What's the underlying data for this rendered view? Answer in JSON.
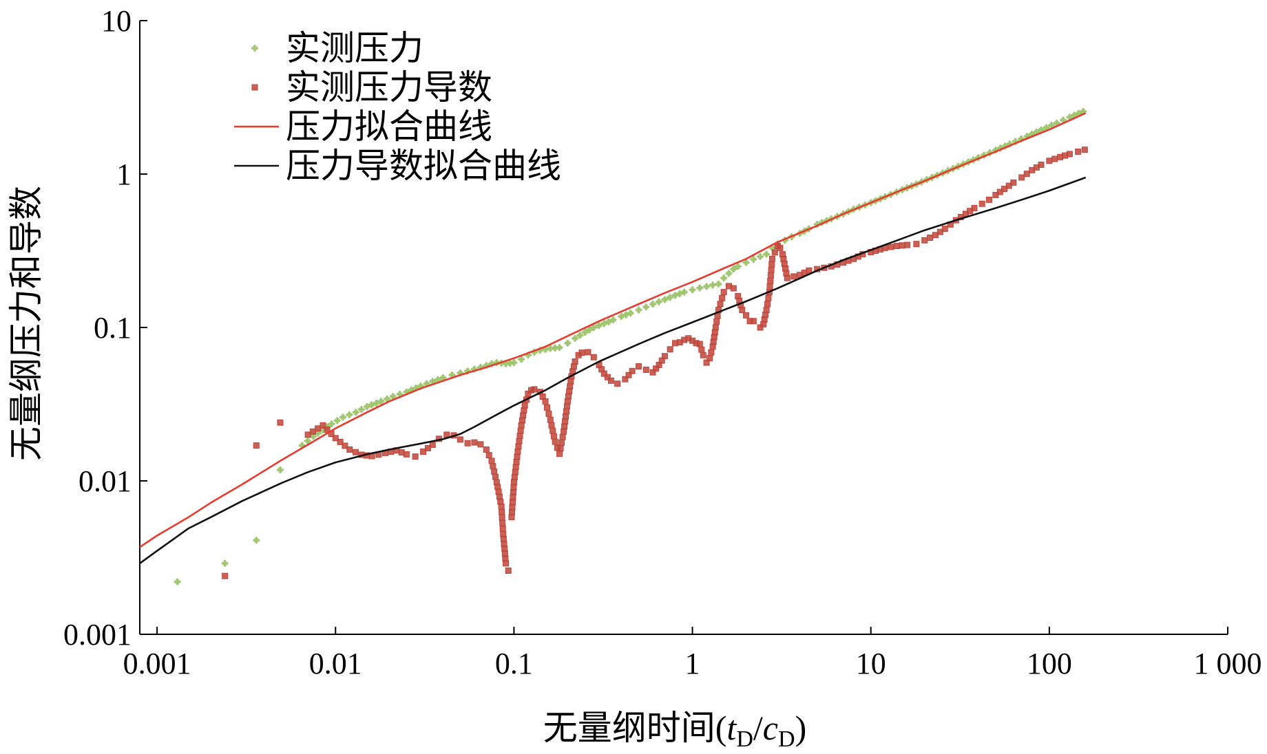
{
  "chart_data": {
    "type": "scatter",
    "title": "",
    "xlabel": {
      "main": "无量纲时间(",
      "var1": "t",
      "sub1": "D",
      "slash": "/",
      "var2": "c",
      "sub2": "D",
      "close": ")"
    },
    "ylabel": "无量纲压力和导数",
    "x_scale": "log",
    "y_scale": "log",
    "xlim": [
      0.0008,
      1000
    ],
    "ylim": [
      0.001,
      10
    ],
    "x_ticks": [
      {
        "value": 0.001,
        "label": "0.001"
      },
      {
        "value": 0.01,
        "label": "0.01"
      },
      {
        "value": 0.1,
        "label": "0.1"
      },
      {
        "value": 1,
        "label": "1"
      },
      {
        "value": 10,
        "label": "10"
      },
      {
        "value": 100,
        "label": "100"
      },
      {
        "value": 1000,
        "label": "1 000"
      }
    ],
    "y_ticks": [
      {
        "value": 0.001,
        "label": "0.001"
      },
      {
        "value": 0.01,
        "label": "0.01"
      },
      {
        "value": 0.1,
        "label": "0.1"
      },
      {
        "value": 1,
        "label": "1"
      },
      {
        "value": 10,
        "label": "10"
      }
    ],
    "grid": false,
    "legend": {
      "position": "top-left",
      "entries": [
        {
          "label": "实测压力",
          "marker": "cross",
          "color": "#9cc46a"
        },
        {
          "label": "实测压力导数",
          "marker": "square",
          "color": "#c0453a"
        },
        {
          "label": "压力拟合曲线",
          "marker": "line",
          "color": "#e83a2e"
        },
        {
          "label": "压力导数拟合曲线",
          "marker": "line",
          "color": "#111111"
        }
      ]
    },
    "series": [
      {
        "name": "实测压力",
        "kind": "points",
        "marker": "cross",
        "color": "#9cc46a",
        "points": [
          [
            0.0013,
            0.0022
          ],
          [
            0.0024,
            0.0029
          ],
          [
            0.0036,
            0.0041
          ],
          [
            0.0049,
            0.0118
          ],
          [
            0.0065,
            0.017
          ],
          [
            0.0075,
            0.0195
          ],
          [
            0.0085,
            0.0215
          ],
          [
            0.0095,
            0.0235
          ],
          [
            0.011,
            0.026
          ],
          [
            0.013,
            0.028
          ],
          [
            0.015,
            0.0305
          ],
          [
            0.018,
            0.033
          ],
          [
            0.021,
            0.0355
          ],
          [
            0.025,
            0.038
          ],
          [
            0.03,
            0.0415
          ],
          [
            0.035,
            0.0445
          ],
          [
            0.04,
            0.047
          ],
          [
            0.045,
            0.049
          ],
          [
            0.05,
            0.0505
          ],
          [
            0.055,
            0.052
          ],
          [
            0.06,
            0.0535
          ],
          [
            0.065,
            0.055
          ],
          [
            0.07,
            0.0565
          ],
          [
            0.075,
            0.058
          ],
          [
            0.08,
            0.059
          ],
          [
            0.085,
            0.0585
          ],
          [
            0.09,
            0.058
          ],
          [
            0.095,
            0.0585
          ],
          [
            0.1,
            0.059
          ],
          [
            0.11,
            0.062
          ],
          [
            0.12,
            0.066
          ],
          [
            0.13,
            0.069
          ],
          [
            0.14,
            0.071
          ],
          [
            0.15,
            0.072
          ],
          [
            0.16,
            0.073
          ],
          [
            0.17,
            0.0735
          ],
          [
            0.18,
            0.074
          ],
          [
            0.2,
            0.079
          ],
          [
            0.22,
            0.085
          ],
          [
            0.25,
            0.093
          ],
          [
            0.28,
            0.1
          ],
          [
            0.32,
            0.106
          ],
          [
            0.36,
            0.112
          ],
          [
            0.4,
            0.118
          ],
          [
            0.45,
            0.124
          ],
          [
            0.5,
            0.13
          ],
          [
            0.55,
            0.136
          ],
          [
            0.6,
            0.142
          ],
          [
            0.7,
            0.152
          ],
          [
            0.8,
            0.162
          ],
          [
            0.9,
            0.17
          ],
          [
            1.0,
            0.176
          ],
          [
            1.1,
            0.181
          ],
          [
            1.2,
            0.185
          ],
          [
            1.3,
            0.189
          ],
          [
            1.4,
            0.192
          ],
          [
            1.5,
            0.21
          ],
          [
            1.6,
            0.225
          ],
          [
            1.7,
            0.24
          ],
          [
            1.8,
            0.25
          ],
          [
            2.0,
            0.265
          ],
          [
            2.2,
            0.278
          ],
          [
            2.4,
            0.29
          ],
          [
            2.6,
            0.3
          ],
          [
            2.8,
            0.33
          ],
          [
            3.0,
            0.35
          ],
          [
            3.3,
            0.37
          ],
          [
            3.6,
            0.39
          ],
          [
            4.0,
            0.41
          ],
          [
            4.5,
            0.44
          ],
          [
            5.0,
            0.47
          ],
          [
            6.0,
            0.51
          ],
          [
            7.0,
            0.55
          ],
          [
            8.0,
            0.59
          ],
          [
            10,
            0.65
          ],
          [
            12,
            0.71
          ],
          [
            15,
            0.79
          ],
          [
            18,
            0.86
          ],
          [
            22,
            0.95
          ],
          [
            27,
            1.05
          ],
          [
            33,
            1.16
          ],
          [
            40,
            1.28
          ],
          [
            50,
            1.43
          ],
          [
            60,
            1.57
          ],
          [
            75,
            1.76
          ],
          [
            90,
            1.94
          ],
          [
            110,
            2.15
          ],
          [
            130,
            2.35
          ],
          [
            155,
            2.56
          ]
        ]
      },
      {
        "name": "实测压力导数",
        "kind": "points",
        "marker": "square",
        "color": "#c0453a",
        "points": [
          [
            0.0024,
            0.0024
          ],
          [
            0.0036,
            0.017
          ],
          [
            0.0049,
            0.024
          ],
          [
            0.007,
            0.02
          ],
          [
            0.0085,
            0.023
          ],
          [
            0.01,
            0.019
          ],
          [
            0.012,
            0.016
          ],
          [
            0.014,
            0.0148
          ],
          [
            0.016,
            0.0145
          ],
          [
            0.019,
            0.0152
          ],
          [
            0.022,
            0.0158
          ],
          [
            0.025,
            0.0149
          ],
          [
            0.028,
            0.0144
          ],
          [
            0.031,
            0.0155
          ],
          [
            0.035,
            0.0172
          ],
          [
            0.038,
            0.0188
          ],
          [
            0.042,
            0.02
          ],
          [
            0.046,
            0.0198
          ],
          [
            0.05,
            0.0186
          ],
          [
            0.055,
            0.0176
          ],
          [
            0.06,
            0.0178
          ],
          [
            0.065,
            0.0173
          ],
          [
            0.07,
            0.016
          ],
          [
            0.075,
            0.0135
          ],
          [
            0.08,
            0.0098
          ],
          [
            0.082,
            0.0085
          ],
          [
            0.085,
            0.0068
          ],
          [
            0.087,
            0.0045
          ],
          [
            0.09,
            0.0029
          ],
          [
            0.093,
            0.0026
          ],
          [
            0.097,
            0.0058
          ],
          [
            0.1,
            0.0098
          ],
          [
            0.105,
            0.0155
          ],
          [
            0.11,
            0.023
          ],
          [
            0.115,
            0.031
          ],
          [
            0.12,
            0.037
          ],
          [
            0.125,
            0.039
          ],
          [
            0.13,
            0.0395
          ],
          [
            0.14,
            0.038
          ],
          [
            0.15,
            0.033
          ],
          [
            0.16,
            0.025
          ],
          [
            0.17,
            0.018
          ],
          [
            0.18,
            0.015
          ],
          [
            0.19,
            0.021
          ],
          [
            0.2,
            0.033
          ],
          [
            0.21,
            0.048
          ],
          [
            0.22,
            0.06
          ],
          [
            0.23,
            0.066
          ],
          [
            0.24,
            0.0685
          ],
          [
            0.26,
            0.069
          ],
          [
            0.28,
            0.064
          ],
          [
            0.3,
            0.057
          ],
          [
            0.32,
            0.05
          ],
          [
            0.35,
            0.045
          ],
          [
            0.38,
            0.043
          ],
          [
            0.42,
            0.046
          ],
          [
            0.46,
            0.052
          ],
          [
            0.5,
            0.0558
          ],
          [
            0.55,
            0.053
          ],
          [
            0.6,
            0.051
          ],
          [
            0.65,
            0.057
          ],
          [
            0.7,
            0.065
          ],
          [
            0.75,
            0.072
          ],
          [
            0.8,
            0.079
          ],
          [
            0.85,
            0.08
          ],
          [
            0.9,
            0.083
          ],
          [
            0.95,
            0.085
          ],
          [
            1.0,
            0.082
          ],
          [
            1.05,
            0.079
          ],
          [
            1.1,
            0.078
          ],
          [
            1.15,
            0.066
          ],
          [
            1.2,
            0.059
          ],
          [
            1.25,
            0.063
          ],
          [
            1.3,
            0.075
          ],
          [
            1.35,
            0.1
          ],
          [
            1.4,
            0.13
          ],
          [
            1.5,
            0.17
          ],
          [
            1.6,
            0.186
          ],
          [
            1.7,
            0.18
          ],
          [
            1.8,
            0.16
          ],
          [
            1.9,
            0.13
          ],
          [
            2.0,
            0.12
          ],
          [
            2.1,
            0.11
          ],
          [
            2.2,
            0.11
          ],
          [
            2.4,
            0.1
          ],
          [
            2.5,
            0.105
          ],
          [
            2.6,
            0.13
          ],
          [
            2.7,
            0.17
          ],
          [
            2.8,
            0.28
          ],
          [
            3.0,
            0.34
          ],
          [
            3.1,
            0.33
          ],
          [
            3.2,
            0.3
          ],
          [
            3.4,
            0.21
          ],
          [
            3.7,
            0.215
          ],
          [
            4.0,
            0.22
          ],
          [
            4.5,
            0.235
          ],
          [
            5.0,
            0.24
          ],
          [
            6.0,
            0.25
          ],
          [
            7.0,
            0.265
          ],
          [
            8.0,
            0.28
          ],
          [
            9.0,
            0.3
          ],
          [
            10,
            0.31
          ],
          [
            12,
            0.33
          ],
          [
            14,
            0.34
          ],
          [
            16,
            0.345
          ],
          [
            18,
            0.35
          ],
          [
            20,
            0.37
          ],
          [
            23,
            0.4
          ],
          [
            26,
            0.44
          ],
          [
            30,
            0.5
          ],
          [
            34,
            0.55
          ],
          [
            38,
            0.6
          ],
          [
            42,
            0.64
          ],
          [
            46,
            0.68
          ],
          [
            50,
            0.73
          ],
          [
            56,
            0.8
          ],
          [
            63,
            0.88
          ],
          [
            70,
            0.95
          ],
          [
            80,
            1.06
          ],
          [
            90,
            1.15
          ],
          [
            100,
            1.22
          ],
          [
            115,
            1.29
          ],
          [
            130,
            1.35
          ],
          [
            145,
            1.4
          ],
          [
            158,
            1.44
          ]
        ]
      },
      {
        "name": "压力拟合曲线",
        "kind": "line",
        "color": "#e83a2e",
        "points": [
          [
            0.0008,
            0.0037
          ],
          [
            0.001,
            0.0044
          ],
          [
            0.0015,
            0.0058
          ],
          [
            0.002,
            0.0072
          ],
          [
            0.003,
            0.0095
          ],
          [
            0.005,
            0.0137
          ],
          [
            0.007,
            0.0172
          ],
          [
            0.01,
            0.022
          ],
          [
            0.015,
            0.028
          ],
          [
            0.02,
            0.033
          ],
          [
            0.03,
            0.04
          ],
          [
            0.05,
            0.049
          ],
          [
            0.07,
            0.055
          ],
          [
            0.1,
            0.063
          ],
          [
            0.15,
            0.075
          ],
          [
            0.2,
            0.088
          ],
          [
            0.3,
            0.11
          ],
          [
            0.5,
            0.142
          ],
          [
            0.7,
            0.168
          ],
          [
            1.0,
            0.198
          ],
          [
            1.5,
            0.243
          ],
          [
            2.0,
            0.28
          ],
          [
            3.0,
            0.36
          ],
          [
            5.0,
            0.46
          ],
          [
            7.0,
            0.55
          ],
          [
            10,
            0.65
          ],
          [
            15,
            0.79
          ],
          [
            20,
            0.9
          ],
          [
            30,
            1.1
          ],
          [
            50,
            1.4
          ],
          [
            70,
            1.65
          ],
          [
            100,
            1.95
          ],
          [
            160,
            2.5
          ]
        ]
      },
      {
        "name": "压力导数拟合曲线",
        "kind": "line",
        "color": "#111111",
        "points": [
          [
            0.0008,
            0.0029
          ],
          [
            0.001,
            0.0035
          ],
          [
            0.0015,
            0.0049
          ],
          [
            0.002,
            0.0058
          ],
          [
            0.003,
            0.0074
          ],
          [
            0.005,
            0.0097
          ],
          [
            0.007,
            0.0114
          ],
          [
            0.01,
            0.0132
          ],
          [
            0.015,
            0.0149
          ],
          [
            0.02,
            0.016
          ],
          [
            0.03,
            0.0175
          ],
          [
            0.04,
            0.0187
          ],
          [
            0.05,
            0.0202
          ],
          [
            0.06,
            0.0225
          ],
          [
            0.08,
            0.027
          ],
          [
            0.1,
            0.031
          ],
          [
            0.15,
            0.039
          ],
          [
            0.2,
            0.047
          ],
          [
            0.3,
            0.06
          ],
          [
            0.5,
            0.078
          ],
          [
            0.7,
            0.092
          ],
          [
            1.0,
            0.108
          ],
          [
            1.5,
            0.13
          ],
          [
            2.0,
            0.148
          ],
          [
            3.0,
            0.18
          ],
          [
            5.0,
            0.235
          ],
          [
            7.0,
            0.275
          ],
          [
            10,
            0.32
          ],
          [
            15,
            0.38
          ],
          [
            20,
            0.43
          ],
          [
            30,
            0.5
          ],
          [
            50,
            0.6
          ],
          [
            70,
            0.68
          ],
          [
            100,
            0.78
          ],
          [
            160,
            0.95
          ]
        ]
      }
    ]
  }
}
